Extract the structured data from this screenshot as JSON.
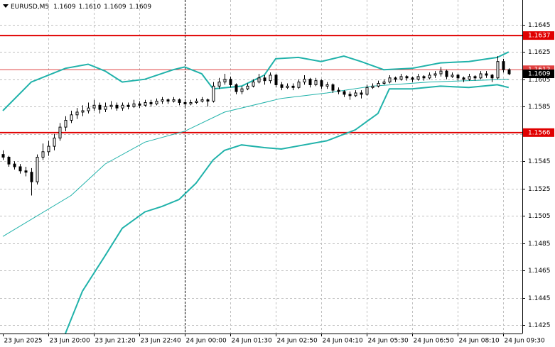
{
  "chart_data": {
    "type": "candlestick",
    "symbol": "EURUSD,M5",
    "ohlc": [
      "1.1609",
      "1.1610",
      "1.1609",
      "1.1609"
    ],
    "ylim": [
      1.1419,
      1.1663
    ],
    "yticks": [
      1.1645,
      1.1625,
      1.1605,
      1.1585,
      1.1565,
      1.1545,
      1.1525,
      1.1505,
      1.1485,
      1.1465,
      1.1445,
      1.1425
    ],
    "xlim": [
      -0.5,
      91.4
    ],
    "xticks": [
      {
        "value": 0,
        "label": "23 Jun 2025"
      },
      {
        "value": 8,
        "label": "23 Jun 20:00"
      },
      {
        "value": 16,
        "label": "23 Jun 21:20"
      },
      {
        "value": 24,
        "label": "23 Jun 22:40"
      },
      {
        "value": 32,
        "label": "24 Jun 00:00"
      },
      {
        "value": 40,
        "label": "24 Jun 01:30"
      },
      {
        "value": 48,
        "label": "24 Jun 02:50"
      },
      {
        "value": 56,
        "label": "24 Jun 04:10"
      },
      {
        "value": 64,
        "label": "24 Jun 05:30"
      },
      {
        "value": 72,
        "label": "24 Jun 06:50"
      },
      {
        "value": 80,
        "label": "24 Jun 08:10"
      },
      {
        "value": 88,
        "label": "24 Jun 09:30"
      }
    ],
    "grid": true,
    "crosshair_x": 32,
    "bull_color": "#ffffff",
    "bear_color": "#000000",
    "candles": [
      [
        1.155,
        1.1553,
        1.1546,
        1.1548
      ],
      [
        1.1548,
        1.1549,
        1.1541,
        1.1543
      ],
      [
        1.1543,
        1.1545,
        1.1539,
        1.1541
      ],
      [
        1.1541,
        1.1543,
        1.1536,
        1.1538
      ],
      [
        1.1538,
        1.1541,
        1.1534,
        1.1537
      ],
      [
        1.1537,
        1.154,
        1.152,
        1.153
      ],
      [
        1.153,
        1.155,
        1.1528,
        1.1548
      ],
      [
        1.1548,
        1.1558,
        1.1546,
        1.1552
      ],
      [
        1.1552,
        1.156,
        1.1549,
        1.1556
      ],
      [
        1.1556,
        1.1565,
        1.1553,
        1.1562
      ],
      [
        1.1562,
        1.1573,
        1.156,
        1.157
      ],
      [
        1.157,
        1.1578,
        1.1567,
        1.1575
      ],
      [
        1.1575,
        1.1582,
        1.1573,
        1.1579
      ],
      [
        1.1579,
        1.1584,
        1.1576,
        1.1581
      ],
      [
        1.1581,
        1.1586,
        1.1578,
        1.1582
      ],
      [
        1.1582,
        1.1588,
        1.158,
        1.1584
      ],
      [
        1.1584,
        1.159,
        1.1582,
        1.1586
      ],
      [
        1.1586,
        1.1588,
        1.158,
        1.1583
      ],
      [
        1.1583,
        1.1588,
        1.1581,
        1.1585
      ],
      [
        1.1585,
        1.1589,
        1.1583,
        1.1586
      ],
      [
        1.1586,
        1.1588,
        1.1582,
        1.1584
      ],
      [
        1.1584,
        1.1588,
        1.1582,
        1.1586
      ],
      [
        1.1586,
        1.1588,
        1.1583,
        1.1585
      ],
      [
        1.1585,
        1.159,
        1.1584,
        1.1587
      ],
      [
        1.1587,
        1.1589,
        1.1584,
        1.1586
      ],
      [
        1.1586,
        1.159,
        1.1585,
        1.1588
      ],
      [
        1.1588,
        1.159,
        1.1585,
        1.1587
      ],
      [
        1.1587,
        1.1591,
        1.1586,
        1.1589
      ],
      [
        1.1589,
        1.1592,
        1.1587,
        1.159
      ],
      [
        1.159,
        1.1591,
        1.1587,
        1.1589
      ],
      [
        1.1589,
        1.1592,
        1.1588,
        1.159
      ],
      [
        1.159,
        1.1591,
        1.1586,
        1.1588
      ],
      [
        1.1588,
        1.1589,
        1.1585,
        1.1587
      ],
      [
        1.1587,
        1.159,
        1.1586,
        1.1588
      ],
      [
        1.1588,
        1.1591,
        1.1587,
        1.1589
      ],
      [
        1.1589,
        1.1592,
        1.1588,
        1.159
      ],
      [
        1.159,
        1.1591,
        1.1585,
        1.1589
      ],
      [
        1.1589,
        1.1603,
        1.1588,
        1.16
      ],
      [
        1.16,
        1.1606,
        1.1598,
        1.1603
      ],
      [
        1.1603,
        1.1609,
        1.1601,
        1.1605
      ],
      [
        1.1605,
        1.1607,
        1.1599,
        1.1601
      ],
      [
        1.1601,
        1.1602,
        1.1594,
        1.1596
      ],
      [
        1.1596,
        1.16,
        1.1594,
        1.1598
      ],
      [
        1.1598,
        1.1602,
        1.1597,
        1.16
      ],
      [
        1.16,
        1.1605,
        1.1599,
        1.1603
      ],
      [
        1.1603,
        1.1609,
        1.1602,
        1.1606
      ],
      [
        1.1606,
        1.1608,
        1.1601,
        1.1604
      ],
      [
        1.1604,
        1.161,
        1.1602,
        1.1608
      ],
      [
        1.1608,
        1.1609,
        1.1599,
        1.1601
      ],
      [
        1.1601,
        1.1603,
        1.1597,
        1.1599
      ],
      [
        1.1599,
        1.1602,
        1.1598,
        1.16
      ],
      [
        1.16,
        1.1602,
        1.1597,
        1.1599
      ],
      [
        1.1599,
        1.1605,
        1.1598,
        1.1603
      ],
      [
        1.1603,
        1.1608,
        1.1601,
        1.1605
      ],
      [
        1.1605,
        1.1606,
        1.1599,
        1.1601
      ],
      [
        1.1601,
        1.1606,
        1.16,
        1.1604
      ],
      [
        1.1604,
        1.1605,
        1.1598,
        1.16
      ],
      [
        1.16,
        1.1603,
        1.1598,
        1.1601
      ],
      [
        1.1601,
        1.1602,
        1.1595,
        1.1597
      ],
      [
        1.1597,
        1.1599,
        1.1594,
        1.1596
      ],
      [
        1.1596,
        1.1597,
        1.1592,
        1.1594
      ],
      [
        1.1594,
        1.1596,
        1.159,
        1.1593
      ],
      [
        1.1593,
        1.1597,
        1.1592,
        1.1595
      ],
      [
        1.1595,
        1.1597,
        1.1591,
        1.1594
      ],
      [
        1.1594,
        1.1601,
        1.1593,
        1.1599
      ],
      [
        1.1599,
        1.1602,
        1.1598,
        1.16
      ],
      [
        1.16,
        1.1604,
        1.1599,
        1.1602
      ],
      [
        1.1602,
        1.1605,
        1.1601,
        1.1603
      ],
      [
        1.1603,
        1.1608,
        1.1602,
        1.1606
      ],
      [
        1.1606,
        1.1607,
        1.1603,
        1.1605
      ],
      [
        1.1605,
        1.1609,
        1.1604,
        1.1607
      ],
      [
        1.1607,
        1.1608,
        1.1604,
        1.1606
      ],
      [
        1.1606,
        1.1607,
        1.1603,
        1.1605
      ],
      [
        1.1605,
        1.1609,
        1.1604,
        1.1607
      ],
      [
        1.1607,
        1.1608,
        1.1604,
        1.1606
      ],
      [
        1.1606,
        1.161,
        1.1605,
        1.1608
      ],
      [
        1.1608,
        1.1611,
        1.1606,
        1.1609
      ],
      [
        1.1609,
        1.1614,
        1.1607,
        1.1611
      ],
      [
        1.1611,
        1.1612,
        1.1605,
        1.1607
      ],
      [
        1.1607,
        1.161,
        1.1606,
        1.1608
      ],
      [
        1.1608,
        1.1609,
        1.1604,
        1.1606
      ],
      [
        1.1606,
        1.1607,
        1.1603,
        1.1605
      ],
      [
        1.1605,
        1.1609,
        1.1604,
        1.1607
      ],
      [
        1.1607,
        1.1608,
        1.1604,
        1.1606
      ],
      [
        1.1606,
        1.1611,
        1.1605,
        1.1609
      ],
      [
        1.1609,
        1.1611,
        1.1606,
        1.1608
      ],
      [
        1.1608,
        1.1609,
        1.1603,
        1.1606
      ],
      [
        1.1606,
        1.1622,
        1.1605,
        1.1618
      ],
      [
        1.1618,
        1.162,
        1.161,
        1.1612
      ],
      [
        1.1612,
        1.1613,
        1.1608,
        1.1609
      ]
    ],
    "bands": [
      {
        "color": "#20b2aa",
        "width": 2,
        "x": [
          0,
          5,
          11,
          15,
          18,
          21,
          25,
          30,
          32,
          35,
          37,
          42,
          46,
          48,
          52,
          56,
          60,
          63,
          67,
          72,
          77,
          82,
          87,
          89
        ],
        "values": [
          1.1582,
          1.1603,
          1.1613,
          1.1616,
          1.1611,
          1.1603,
          1.1605,
          1.1612,
          1.1614,
          1.1609,
          1.1598,
          1.16,
          1.1608,
          1.162,
          1.1621,
          1.1618,
          1.1622,
          1.1618,
          1.1612,
          1.1613,
          1.1617,
          1.1618,
          1.1621,
          1.1625
        ]
      },
      {
        "color": "#20b2aa",
        "width": 2,
        "x": [
          11,
          14,
          18,
          21,
          25,
          28,
          31,
          34,
          37,
          39,
          42,
          46,
          49,
          53,
          57,
          62,
          66,
          68,
          72,
          77,
          82,
          87,
          89
        ],
        "values": [
          1.1419,
          1.145,
          1.1476,
          1.1496,
          1.1508,
          1.1512,
          1.1517,
          1.1529,
          1.1546,
          1.1553,
          1.1557,
          1.1555,
          1.1554,
          1.1557,
          1.156,
          1.1568,
          1.158,
          1.1598,
          1.1598,
          1.16,
          1.1599,
          1.1601,
          1.1599
        ]
      },
      {
        "color": "#20b2aa",
        "width": 1,
        "x": [
          0,
          12,
          18,
          25,
          32,
          39,
          49,
          57,
          65,
          75,
          89
        ],
        "values": [
          1.149,
          1.152,
          1.1543,
          1.1559,
          1.1567,
          1.1581,
          1.1591,
          1.1595,
          1.16,
          1.1603,
          1.1605
        ]
      }
    ],
    "levels": [
      {
        "value": 1.1637,
        "color": "#e00000",
        "width": 2
      },
      {
        "value": 1.1566,
        "color": "#e00000",
        "width": 2
      },
      {
        "value": 1.1612,
        "color": "#e04040",
        "width": 1
      }
    ],
    "bid": 1.1609
  }
}
